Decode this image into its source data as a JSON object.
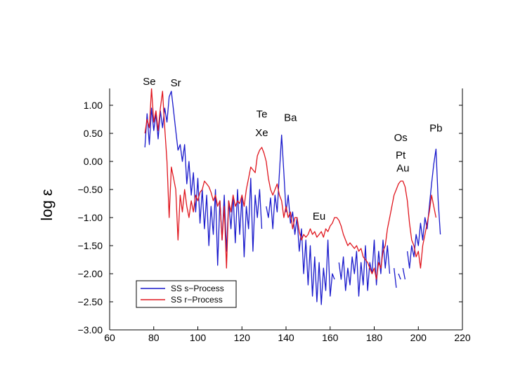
{
  "chart_data": {
    "type": "line",
    "title": "",
    "xlabel": "",
    "ylabel": "log ε",
    "xlim": [
      60,
      220
    ],
    "ylim": [
      -3.0,
      1.3
    ],
    "x_ticks": [
      60,
      80,
      100,
      120,
      140,
      160,
      180,
      200,
      220
    ],
    "x_tick_labels": [
      "60",
      "80",
      "100",
      "120",
      "140",
      "160",
      "180",
      "200",
      "220"
    ],
    "y_ticks": [
      1.0,
      0.5,
      0.0,
      -0.5,
      -1.0,
      -1.5,
      -2.0,
      -2.5,
      -3.0
    ],
    "y_tick_labels": [
      "1.00",
      "0.50",
      "0.00",
      "−0.50",
      "−1.00",
      "−1.50",
      "−2.00",
      "−2.50",
      "−3.00"
    ],
    "legend": {
      "position": "bottom-left"
    },
    "series": [
      {
        "name": "SS s−Process",
        "color": "#1a1acc",
        "segments": [
          [
            [
              76,
              0.25
            ],
            [
              77,
              0.85
            ],
            [
              78,
              0.3
            ],
            [
              79,
              0.95
            ],
            [
              80,
              0.55
            ],
            [
              81,
              0.85
            ],
            [
              82,
              0.4
            ],
            [
              83,
              0.9
            ],
            [
              84,
              0.6
            ],
            [
              85,
              0.95
            ],
            [
              86,
              0.7
            ],
            [
              87,
              1.15
            ],
            [
              88,
              1.25
            ],
            [
              89,
              0.9
            ],
            [
              90,
              0.55
            ],
            [
              91,
              0.2
            ],
            [
              92,
              0.3
            ],
            [
              93,
              0.0
            ],
            [
              94,
              0.3
            ],
            [
              95,
              -0.4
            ],
            [
              96,
              0.0
            ],
            [
              97,
              -0.6
            ],
            [
              98,
              -0.2
            ],
            [
              99,
              -0.9
            ],
            [
              100,
              -0.3
            ],
            [
              101,
              -1.1
            ],
            [
              102,
              -0.5
            ],
            [
              103,
              -1.2
            ],
            [
              104,
              -0.6
            ],
            [
              105,
              -1.5
            ],
            [
              106,
              -0.8
            ],
            [
              107,
              -1.3
            ],
            [
              108,
              -0.5
            ],
            [
              109,
              -1.85
            ],
            [
              110,
              -0.7
            ],
            [
              111,
              -1.4
            ],
            [
              112,
              -0.6
            ],
            [
              113,
              -1.6
            ],
            [
              114,
              -0.7
            ],
            [
              115,
              -1.2
            ],
            [
              116,
              -0.6
            ],
            [
              117,
              -1.45
            ],
            [
              118,
              -0.5
            ],
            [
              119,
              -1.3
            ],
            [
              120,
              -0.6
            ],
            [
              121,
              -1.7
            ],
            [
              122,
              -0.8
            ],
            [
              123,
              -1.2
            ],
            [
              124,
              -0.3
            ],
            [
              125,
              -1.6
            ],
            [
              126,
              -0.6
            ],
            [
              127,
              -1.0
            ],
            [
              128,
              -0.5
            ],
            [
              129,
              -1.2
            ]
          ],
          [
            [
              131,
              -0.8
            ],
            [
              132,
              -1.0
            ],
            [
              133,
              -0.65
            ],
            [
              134,
              -1.2
            ],
            [
              135,
              -0.6
            ],
            [
              136,
              -0.9
            ],
            [
              137,
              -0.2
            ],
            [
              138,
              0.47
            ],
            [
              139,
              -0.2
            ],
            [
              140,
              -0.9
            ],
            [
              141,
              -0.6
            ],
            [
              142,
              -1.1
            ],
            [
              143,
              -0.9
            ],
            [
              144,
              -1.3
            ],
            [
              145,
              -1.0
            ],
            [
              146,
              -1.6
            ],
            [
              147,
              -1.2
            ],
            [
              148,
              -2.0
            ],
            [
              149,
              -1.4
            ],
            [
              150,
              -2.2
            ],
            [
              151,
              -1.5
            ],
            [
              152,
              -2.4
            ],
            [
              153,
              -1.7
            ],
            [
              154,
              -2.5
            ],
            [
              155,
              -1.8
            ],
            [
              156,
              -2.55
            ],
            [
              157,
              -1.9
            ],
            [
              158,
              -2.3
            ],
            [
              159,
              -1.4
            ],
            [
              160,
              -2.4
            ],
            [
              161,
              -2.0
            ],
            [
              162,
              -2.1
            ]
          ],
          [
            [
              164,
              -1.8
            ],
            [
              165,
              -2.1
            ],
            [
              166,
              -1.7
            ],
            [
              167,
              -2.3
            ],
            [
              168,
              -1.9
            ],
            [
              169,
              -2.2
            ],
            [
              170,
              -1.7
            ],
            [
              171,
              -2.0
            ],
            [
              172,
              -1.6
            ],
            [
              173,
              -2.4
            ],
            [
              174,
              -1.8
            ],
            [
              175,
              -2.2
            ],
            [
              176,
              -1.5
            ],
            [
              177,
              -2.3
            ],
            [
              178,
              -1.8
            ],
            [
              179,
              -2.0
            ],
            [
              180,
              -1.4
            ],
            [
              181,
              -2.2
            ],
            [
              182,
              -1.6
            ],
            [
              183,
              -2.0
            ],
            [
              184,
              -1.4
            ],
            [
              185,
              -1.9
            ],
            [
              186,
              -1.5
            ],
            [
              187,
              -2.0
            ]
          ],
          [
            [
              189,
              -1.9
            ],
            [
              190,
              -2.25
            ]
          ],
          [
            [
              191,
              -2.0
            ],
            [
              192,
              -2.1
            ]
          ],
          [
            [
              193,
              -1.9
            ],
            [
              194,
              -2.1
            ]
          ],
          [
            [
              195,
              -1.6
            ],
            [
              196,
              -1.9
            ],
            [
              197,
              -1.5
            ],
            [
              198,
              -1.7
            ],
            [
              199,
              -1.3
            ],
            [
              200,
              -1.5
            ],
            [
              201,
              -1.1
            ],
            [
              202,
              -1.4
            ],
            [
              203,
              -1.0
            ],
            [
              204,
              -1.2
            ],
            [
              205,
              -0.8
            ],
            [
              206,
              -0.4
            ],
            [
              207,
              -0.05
            ],
            [
              208,
              0.22
            ],
            [
              209,
              -0.7
            ],
            [
              210,
              -1.3
            ]
          ]
        ]
      },
      {
        "name": "SS r−Process",
        "color": "#e0161e",
        "segments": [
          [
            [
              76,
              0.5
            ],
            [
              77,
              0.75
            ],
            [
              78,
              0.6
            ],
            [
              79,
              1.3
            ],
            [
              80,
              0.7
            ],
            [
              81,
              0.9
            ],
            [
              82,
              0.55
            ],
            [
              83,
              0.95
            ],
            [
              84,
              1.25
            ],
            [
              85,
              0.6
            ],
            [
              86,
              0.0
            ],
            [
              87,
              -1.0
            ],
            [
              88,
              -0.1
            ],
            [
              89,
              -0.3
            ],
            [
              90,
              -0.5
            ],
            [
              91,
              -1.4
            ],
            [
              92,
              -0.6
            ],
            [
              93,
              -0.9
            ],
            [
              94,
              -0.5
            ],
            [
              95,
              -0.8
            ],
            [
              96,
              -1.0
            ],
            [
              97,
              -0.7
            ],
            [
              98,
              -0.9
            ],
            [
              99,
              -0.6
            ],
            [
              100,
              -0.7
            ],
            [
              101,
              -0.55
            ],
            [
              102,
              -0.5
            ],
            [
              103,
              -0.35
            ],
            [
              104,
              -0.4
            ],
            [
              105,
              -0.45
            ],
            [
              106,
              -0.55
            ],
            [
              107,
              -0.7
            ],
            [
              108,
              -0.6
            ],
            [
              109,
              -0.8
            ],
            [
              110,
              -0.7
            ],
            [
              111,
              -1.4
            ],
            [
              112,
              -0.8
            ],
            [
              113,
              -1.9
            ],
            [
              114,
              -0.7
            ],
            [
              115,
              -0.9
            ],
            [
              116,
              -0.6
            ],
            [
              117,
              -0.8
            ],
            [
              118,
              -0.7
            ],
            [
              119,
              -0.75
            ],
            [
              120,
              -0.6
            ],
            [
              121,
              -0.8
            ],
            [
              122,
              -0.5
            ],
            [
              123,
              -0.3
            ],
            [
              124,
              -0.1
            ],
            [
              125,
              -0.15
            ],
            [
              126,
              -0.2
            ],
            [
              127,
              0.1
            ],
            [
              128,
              0.2
            ],
            [
              129,
              0.25
            ],
            [
              130,
              0.15
            ],
            [
              131,
              0.0
            ],
            [
              132,
              -0.3
            ],
            [
              133,
              -0.5
            ],
            [
              134,
              -0.6
            ],
            [
              135,
              -0.5
            ],
            [
              136,
              -0.4
            ],
            [
              137,
              -0.6
            ],
            [
              138,
              -0.7
            ],
            [
              139,
              -1.0
            ],
            [
              140,
              -0.8
            ],
            [
              141,
              -1.0
            ],
            [
              142,
              -0.9
            ],
            [
              143,
              -1.2
            ],
            [
              144,
              -1.0
            ],
            [
              145,
              -1.0
            ],
            [
              146,
              -1.25
            ],
            [
              147,
              -1.4
            ],
            [
              148,
              -1.3
            ],
            [
              149,
              -1.35
            ],
            [
              150,
              -1.3
            ],
            [
              151,
              -1.2
            ],
            [
              152,
              -1.3
            ],
            [
              153,
              -1.25
            ],
            [
              154,
              -1.35
            ],
            [
              155,
              -1.3
            ],
            [
              156,
              -1.25
            ],
            [
              157,
              -1.35
            ],
            [
              158,
              -1.2
            ],
            [
              159,
              -1.25
            ],
            [
              160,
              -1.15
            ],
            [
              161,
              -1.1
            ],
            [
              162,
              -1.0
            ],
            [
              163,
              -1.0
            ],
            [
              164,
              -1.05
            ],
            [
              165,
              -1.15
            ],
            [
              166,
              -1.3
            ],
            [
              167,
              -1.4
            ],
            [
              168,
              -1.5
            ],
            [
              169,
              -1.45
            ],
            [
              170,
              -1.5
            ],
            [
              171,
              -1.55
            ],
            [
              172,
              -1.5
            ],
            [
              173,
              -1.6
            ],
            [
              174,
              -1.55
            ],
            [
              175,
              -1.7
            ],
            [
              176,
              -1.75
            ],
            [
              177,
              -1.8
            ],
            [
              178,
              -1.9
            ],
            [
              179,
              -2.0
            ],
            [
              180,
              -1.9
            ],
            [
              181,
              -2.1
            ],
            [
              182,
              -1.8
            ],
            [
              183,
              -1.9
            ],
            [
              184,
              -1.6
            ],
            [
              185,
              -1.5
            ],
            [
              186,
              -1.2
            ],
            [
              187,
              -1.0
            ],
            [
              188,
              -0.8
            ],
            [
              189,
              -0.6
            ],
            [
              190,
              -0.5
            ],
            [
              191,
              -0.4
            ],
            [
              192,
              -0.35
            ],
            [
              193,
              -0.35
            ],
            [
              194,
              -0.45
            ],
            [
              195,
              -0.7
            ],
            [
              196,
              -1.1
            ],
            [
              197,
              -1.4
            ],
            [
              198,
              -1.5
            ],
            [
              199,
              -1.7
            ],
            [
              200,
              -1.6
            ],
            [
              201,
              -1.9
            ],
            [
              202,
              -1.5
            ],
            [
              203,
              -1.3
            ],
            [
              204,
              -1.1
            ],
            [
              205,
              -0.9
            ],
            [
              206,
              -0.6
            ],
            [
              207,
              -0.8
            ],
            [
              208,
              -1.0
            ]
          ]
        ]
      }
    ],
    "annotations": [
      {
        "text": "Se",
        "x": 78,
        "y": 1.36
      },
      {
        "text": "Sr",
        "x": 90,
        "y": 1.34
      },
      {
        "text": "Te",
        "x": 129,
        "y": 0.78
      },
      {
        "text": "Xe",
        "x": 129,
        "y": 0.45
      },
      {
        "text": "Ba",
        "x": 142,
        "y": 0.72
      },
      {
        "text": "Eu",
        "x": 155,
        "y": -1.04
      },
      {
        "text": "Os",
        "x": 192,
        "y": 0.36
      },
      {
        "text": "Pt",
        "x": 192,
        "y": 0.05
      },
      {
        "text": "Au",
        "x": 193,
        "y": -0.18
      },
      {
        "text": "Pb",
        "x": 208,
        "y": 0.53
      }
    ]
  }
}
